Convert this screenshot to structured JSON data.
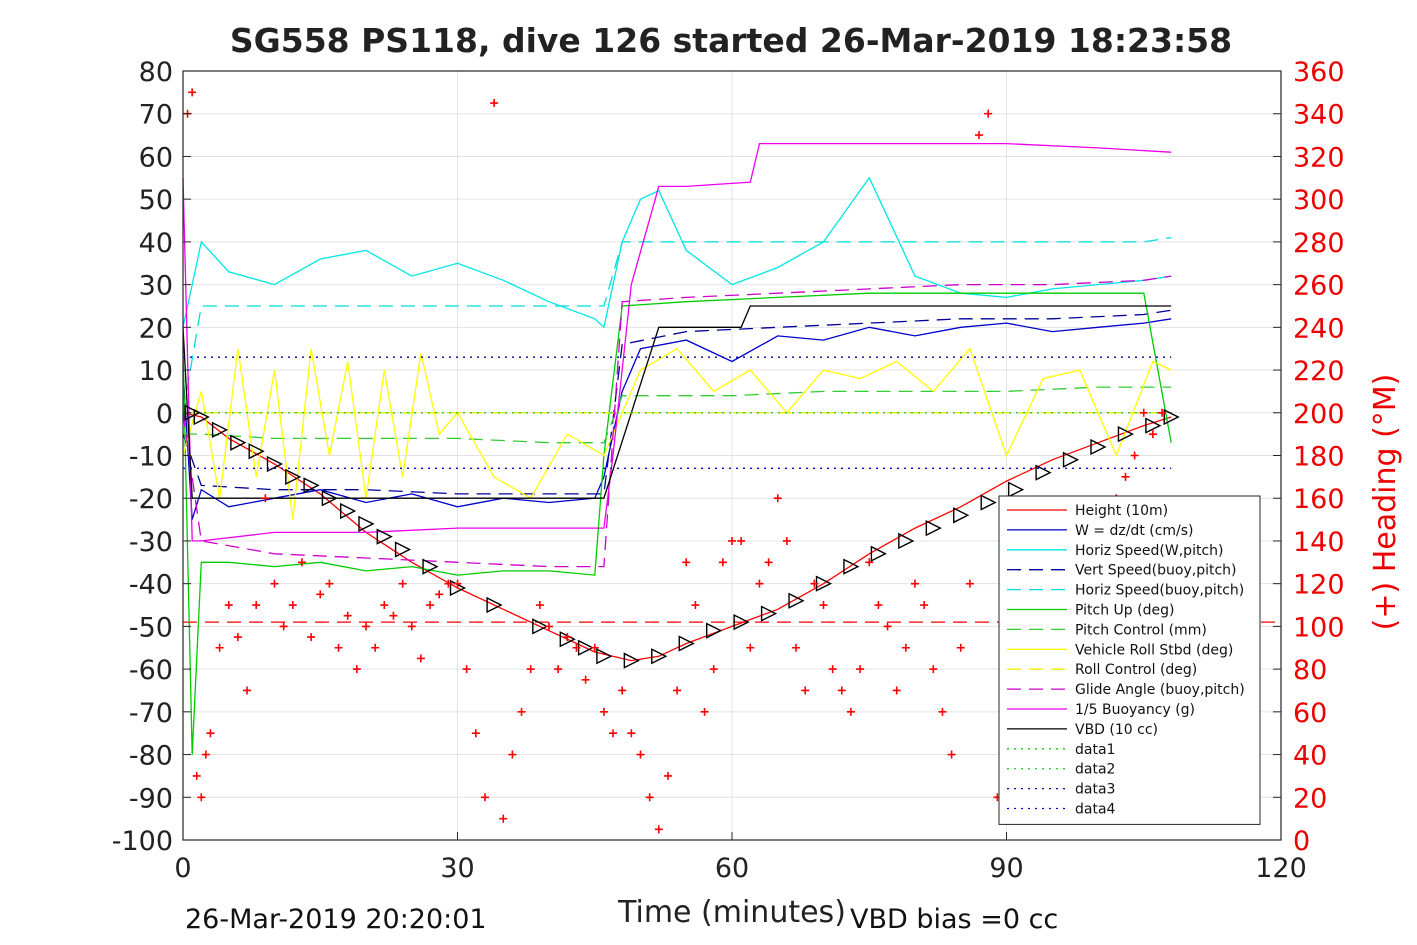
{
  "chart_data": {
    "type": "line",
    "title": "SG558 PS118, dive 126 started 26-Mar-2019 18:23:58",
    "xlabel": "Time (minutes)",
    "ylabel": "",
    "y2label": "(+) Heading (°M)",
    "xlim": [
      0,
      120
    ],
    "ylim": [
      -100,
      80
    ],
    "y2lim": [
      0,
      360
    ],
    "xticks": [
      0,
      30,
      60,
      90,
      120
    ],
    "yticks": [
      80,
      70,
      60,
      50,
      40,
      30,
      20,
      10,
      0,
      -10,
      -20,
      -30,
      -40,
      -50,
      -60,
      -70,
      -80,
      -90,
      -100
    ],
    "y2ticks": [
      360,
      340,
      320,
      300,
      280,
      260,
      240,
      220,
      200,
      180,
      160,
      140,
      120,
      100,
      80,
      60,
      40,
      20,
      0
    ],
    "grid": true,
    "legend_position": "bottom-right",
    "footer_left": "26-Mar-2019 20:20:01",
    "footer_right": "VBD bias =0 cc",
    "series": [
      {
        "name": "Height (10m)",
        "color": "#ff0000",
        "style": "solid",
        "x": [
          0,
          2,
          5,
          10,
          15,
          20,
          25,
          30,
          35,
          40,
          45,
          49,
          52,
          55,
          60,
          65,
          70,
          75,
          80,
          85,
          90,
          95,
          100,
          105,
          108
        ],
        "y": [
          0,
          -1,
          -6,
          -12,
          -19,
          -28,
          -35,
          -41,
          -46,
          -51,
          -56,
          -58,
          -57,
          -54,
          -50,
          -46,
          -40,
          -33,
          -27,
          -22,
          -16,
          -11,
          -7,
          -3,
          -1
        ]
      },
      {
        "name": "W = dz/dt (cm/s)",
        "color": "#0000cc",
        "style": "solid",
        "x": [
          0,
          1,
          2,
          5,
          10,
          15,
          20,
          25,
          30,
          35,
          40,
          45,
          46,
          48,
          50,
          55,
          60,
          65,
          70,
          75,
          80,
          85,
          90,
          95,
          100,
          105,
          108
        ],
        "y": [
          10,
          -25,
          -18,
          -22,
          -20,
          -18,
          -21,
          -19,
          -22,
          -20,
          -21,
          -20,
          -15,
          5,
          15,
          17,
          12,
          18,
          17,
          20,
          18,
          20,
          21,
          19,
          20,
          21,
          22
        ]
      },
      {
        "name": "Horiz Speed(W,pitch)",
        "color": "#00e5e5",
        "style": "solid",
        "x": [
          0,
          1,
          2,
          5,
          10,
          15,
          20,
          25,
          30,
          35,
          40,
          45,
          46,
          48,
          50,
          52,
          55,
          60,
          65,
          70,
          75,
          80,
          85,
          90,
          95,
          100,
          105,
          108
        ],
        "y": [
          20,
          30,
          40,
          33,
          30,
          36,
          38,
          32,
          35,
          31,
          26,
          22,
          20,
          40,
          50,
          52,
          38,
          30,
          34,
          40,
          55,
          32,
          28,
          27,
          29,
          30,
          31,
          32
        ]
      },
      {
        "name": "Vert Speed(buoy,pitch)",
        "color": "#000099",
        "style": "dash",
        "x": [
          0,
          2,
          10,
          20,
          30,
          40,
          46,
          48,
          55,
          65,
          75,
          85,
          95,
          105,
          108
        ],
        "y": [
          -5,
          -17,
          -18,
          -18,
          -19,
          -19,
          -19,
          16,
          19,
          20,
          21,
          22,
          22,
          23,
          24
        ]
      },
      {
        "name": "Horiz Speed(buoy,pitch)",
        "color": "#00dddd",
        "style": "dash",
        "x": [
          0,
          2,
          10,
          20,
          30,
          40,
          46,
          48,
          55,
          65,
          75,
          85,
          95,
          105,
          108
        ],
        "y": [
          0,
          25,
          25,
          25,
          25,
          25,
          25,
          40,
          40,
          40,
          40,
          40,
          40,
          40,
          41
        ]
      },
      {
        "name": "Pitch Up (deg)",
        "color": "#00cc00",
        "style": "solid",
        "x": [
          0,
          1,
          2,
          5,
          10,
          15,
          20,
          25,
          30,
          35,
          40,
          45,
          46,
          48,
          55,
          65,
          75,
          85,
          95,
          105,
          108
        ],
        "y": [
          15,
          -80,
          -35,
          -35,
          -36,
          -35,
          -37,
          -36,
          -38,
          -37,
          -37,
          -38,
          -10,
          25,
          26,
          27,
          28,
          28,
          28,
          28,
          -7
        ]
      },
      {
        "name": "Pitch Control (mm)",
        "color": "#33cc33",
        "style": "dash",
        "x": [
          0,
          2,
          10,
          20,
          30,
          40,
          46,
          48,
          60,
          70,
          80,
          90,
          100,
          108
        ],
        "y": [
          -5,
          -5,
          -6,
          -6,
          -6,
          -7,
          -7,
          4,
          4,
          5,
          5,
          5,
          6,
          6
        ]
      },
      {
        "name": "Vehicle Roll Stbd (deg)",
        "color": "#ffff00",
        "style": "solid",
        "x": [
          0,
          2,
          4,
          6,
          8,
          10,
          12,
          14,
          16,
          18,
          20,
          22,
          24,
          26,
          28,
          30,
          34,
          38,
          42,
          46,
          50,
          54,
          58,
          62,
          66,
          70,
          74,
          78,
          82,
          86,
          90,
          94,
          98,
          102,
          106,
          108
        ],
        "y": [
          -10,
          5,
          -20,
          15,
          -15,
          10,
          -25,
          15,
          -10,
          12,
          -20,
          10,
          -15,
          14,
          -5,
          0,
          -15,
          -20,
          -5,
          -10,
          10,
          15,
          5,
          10,
          0,
          10,
          8,
          12,
          5,
          15,
          -10,
          8,
          10,
          -10,
          12,
          10
        ]
      },
      {
        "name": "Roll Control (deg)",
        "color": "#eeee00",
        "style": "dash",
        "x": [
          0,
          108
        ],
        "y": [
          0,
          0
        ]
      },
      {
        "name": "Glide Angle (buoy,pitch)",
        "color": "#cc00cc",
        "style": "dash",
        "x": [
          0,
          2,
          10,
          20,
          30,
          40,
          46,
          48,
          55,
          65,
          75,
          85,
          95,
          105,
          108
        ],
        "y": [
          0,
          -30,
          -33,
          -34,
          -35,
          -36,
          -36,
          26,
          27,
          28,
          29,
          30,
          30,
          31,
          32
        ]
      },
      {
        "name": "1/5 Buoyancy (g)",
        "color": "#ee00ee",
        "style": "solid",
        "x": [
          0,
          1,
          2,
          10,
          20,
          30,
          40,
          46,
          47,
          49,
          52,
          55,
          62,
          63,
          70,
          80,
          90,
          100,
          108
        ],
        "y": [
          55,
          -30,
          -30,
          -28,
          -28,
          -27,
          -27,
          -27,
          -10,
          30,
          53,
          53,
          54,
          63,
          63,
          63,
          63,
          62,
          61
        ]
      },
      {
        "name": "VBD (10 cc)",
        "color": "#000000",
        "style": "solid",
        "x": [
          0,
          1,
          3,
          45,
          46,
          52,
          53,
          61,
          62,
          108
        ],
        "y": [
          20,
          -20,
          -20,
          -20,
          -20,
          20,
          20,
          20,
          25,
          25
        ]
      },
      {
        "name": "data1",
        "color": "#00cc00",
        "style": "dot",
        "x": [
          0,
          108
        ],
        "y": [
          0,
          0
        ]
      },
      {
        "name": "data2",
        "color": "#33cc33",
        "style": "dot",
        "x": [
          0,
          108
        ],
        "y": [
          0,
          0
        ]
      },
      {
        "name": "data3",
        "color": "#000099",
        "style": "dot",
        "x": [
          0,
          108
        ],
        "y": [
          13,
          13
        ]
      },
      {
        "name": "data4",
        "color": "#0000cc",
        "style": "dot",
        "x": [
          0,
          108
        ],
        "y": [
          -13,
          -13
        ]
      }
    ],
    "reference_lines": [
      {
        "color": "#ff0000",
        "style": "dash",
        "y": -49
      }
    ],
    "triangle_markers": {
      "color": "#000000",
      "x": [
        1,
        2,
        4,
        6,
        8,
        10,
        12,
        14,
        16,
        18,
        20,
        22,
        24,
        27,
        30,
        34,
        39,
        42,
        44,
        46,
        49,
        52,
        55,
        58,
        61,
        64,
        67,
        70,
        73,
        76,
        79,
        82,
        85,
        88,
        91,
        94,
        97,
        100,
        103,
        106,
        108
      ],
      "y": [
        0,
        -1,
        -4,
        -7,
        -9,
        -12,
        -15,
        -17,
        -20,
        -23,
        -26,
        -29,
        -32,
        -36,
        -41,
        -45,
        -50,
        -53,
        -55,
        -57,
        -58,
        -57,
        -54,
        -51,
        -49,
        -47,
        -44,
        -40,
        -36,
        -33,
        -30,
        -27,
        -24,
        -21,
        -18,
        -14,
        -11,
        -8,
        -5,
        -3,
        -1
      ]
    },
    "heading_points": {
      "name": "(+) Heading (°M)",
      "color": "#ff0000",
      "axis": "right",
      "x": [
        0.5,
        1,
        1.5,
        2,
        2.5,
        3,
        4,
        5,
        6,
        7,
        8,
        9,
        10,
        11,
        12,
        13,
        14,
        15,
        16,
        17,
        18,
        19,
        20,
        21,
        22,
        23,
        24,
        25,
        26,
        27,
        28,
        29,
        30,
        31,
        32,
        33,
        34,
        35,
        36,
        37,
        38,
        39,
        40,
        41,
        42,
        43,
        44,
        45,
        46,
        47,
        48,
        49,
        50,
        51,
        52,
        53,
        54,
        55,
        56,
        57,
        58,
        59,
        60,
        61,
        62,
        63,
        64,
        65,
        66,
        67,
        68,
        69,
        70,
        71,
        72,
        73,
        74,
        75,
        76,
        77,
        78,
        79,
        80,
        81,
        82,
        83,
        84,
        85,
        86,
        87,
        88,
        89,
        90,
        91,
        92,
        93,
        94,
        95,
        96,
        97,
        98,
        99,
        100,
        101,
        102,
        103,
        104,
        105,
        106,
        107
      ],
      "y": [
        340,
        350,
        30,
        20,
        40,
        50,
        90,
        110,
        95,
        70,
        110,
        160,
        120,
        100,
        110,
        130,
        95,
        115,
        120,
        90,
        105,
        80,
        100,
        90,
        110,
        105,
        120,
        100,
        85,
        110,
        115,
        120,
        120,
        80,
        50,
        20,
        345,
        10,
        40,
        60,
        80,
        110,
        100,
        80,
        95,
        90,
        75,
        90,
        60,
        50,
        70,
        50,
        40,
        20,
        5,
        30,
        70,
        130,
        110,
        60,
        80,
        130,
        140,
        140,
        90,
        120,
        130,
        160,
        140,
        90,
        70,
        120,
        110,
        80,
        70,
        60,
        80,
        130,
        110,
        100,
        70,
        90,
        120,
        110,
        80,
        60,
        40,
        90,
        120,
        330,
        340,
        20,
        40,
        60,
        30,
        80,
        120,
        140,
        100,
        70,
        90,
        110,
        130,
        150,
        160,
        170,
        180,
        200,
        190,
        200
      ]
    }
  }
}
